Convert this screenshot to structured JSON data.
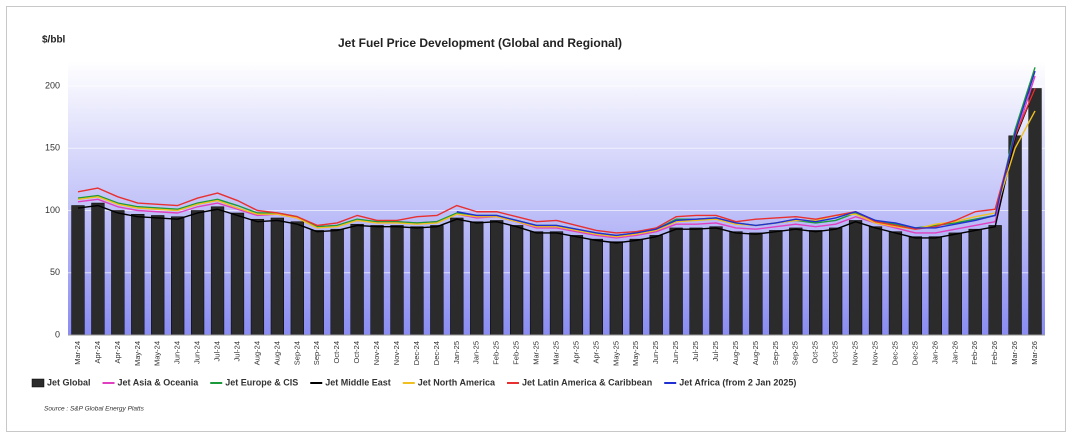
{
  "chart_data": {
    "type": "bar",
    "title": "Jet Fuel Price Development (Global and Regional)",
    "y_label": "$/bbl",
    "source": "Source : S&P Global Energy Platts",
    "categories": [
      "Mar-24",
      "Apr-24",
      "Apr-24",
      "May-24",
      "May-24",
      "Jun-24",
      "Jun-24",
      "Jul-24",
      "Jul-24",
      "Aug-24",
      "Aug-24",
      "Sep-24",
      "Sep-24",
      "Oct-24",
      "Oct-24",
      "Nov-24",
      "Nov-24",
      "Dec-24",
      "Dec-24",
      "Jan-25",
      "Jan-25",
      "Feb-25",
      "Feb-25",
      "Mar-25",
      "Mar-25",
      "Apr-25",
      "Apr-25",
      "May-25",
      "May-25",
      "Jun-25",
      "Jun-25",
      "Jul-25",
      "Jul-25",
      "Aug-25",
      "Aug-25",
      "Sep-25",
      "Sep-25",
      "Oct-25",
      "Oct-25",
      "Nov-25",
      "Nov-25",
      "Dec-25",
      "Dec-25",
      "Jan-26",
      "Jan-26",
      "Feb-26",
      "Feb-26",
      "Mar-26",
      "Mar-26"
    ],
    "series": [
      {
        "name": "Jet Global",
        "mark": "bar",
        "color": "#2b2b2b",
        "values": [
          104,
          106,
          100,
          97,
          96,
          95,
          100,
          103,
          98,
          93,
          94,
          91,
          84,
          85,
          89,
          88,
          88,
          87,
          88,
          94,
          91,
          92,
          88,
          83,
          83,
          80,
          77,
          75,
          77,
          80,
          86,
          86,
          87,
          83,
          82,
          84,
          86,
          84,
          86,
          92,
          87,
          83,
          79,
          79,
          82,
          85,
          88,
          160,
          198
        ]
      },
      {
        "name": "Jet Asia & Oceania",
        "mark": "line",
        "color": "#e040c0",
        "values": [
          107,
          109,
          103,
          100,
          99,
          98,
          103,
          106,
          101,
          96,
          97,
          94,
          87,
          88,
          92,
          91,
          91,
          90,
          91,
          97,
          94,
          95,
          91,
          86,
          86,
          83,
          80,
          78,
          80,
          83,
          89,
          89,
          90,
          86,
          85,
          87,
          89,
          87,
          89,
          95,
          90,
          86,
          82,
          82,
          85,
          88,
          91,
          158,
          208
        ]
      },
      {
        "name": "Jet Europe & CIS",
        "mark": "line",
        "color": "#1a9a3a",
        "values": [
          110,
          112,
          106,
          103,
          102,
          101,
          106,
          109,
          104,
          98,
          98,
          95,
          87,
          88,
          93,
          91,
          91,
          90,
          91,
          98,
          96,
          96,
          92,
          88,
          88,
          85,
          82,
          80,
          82,
          85,
          93,
          93,
          94,
          90,
          88,
          90,
          92,
          90,
          92,
          98,
          92,
          89,
          86,
          88,
          90,
          93,
          96,
          165,
          215
        ]
      },
      {
        "name": "Jet Middle East",
        "mark": "line",
        "color": "#000000",
        "values": [
          102,
          104,
          98,
          95,
          94,
          93,
          98,
          101,
          96,
          91,
          92,
          89,
          83,
          84,
          88,
          87,
          87,
          86,
          87,
          93,
          90,
          91,
          87,
          82,
          82,
          79,
          76,
          74,
          76,
          79,
          85,
          85,
          86,
          82,
          81,
          83,
          85,
          83,
          85,
          91,
          86,
          82,
          78,
          78,
          81,
          84,
          87,
          158,
          198
        ]
      },
      {
        "name": "Jet North America",
        "mark": "line",
        "color": "#f0c020",
        "values": [
          109,
          111,
          105,
          102,
          101,
          100,
          105,
          108,
          102,
          97,
          97,
          94,
          86,
          87,
          92,
          90,
          90,
          89,
          90,
          97,
          95,
          95,
          91,
          87,
          87,
          84,
          81,
          79,
          81,
          84,
          91,
          92,
          93,
          89,
          88,
          90,
          92,
          92,
          96,
          97,
          90,
          87,
          85,
          89,
          91,
          95,
          98,
          150,
          180
        ]
      },
      {
        "name": "Jet Latin America & Caribbean",
        "mark": "line",
        "color": "#e83030",
        "values": [
          115,
          118,
          111,
          106,
          105,
          104,
          110,
          114,
          108,
          100,
          98,
          95,
          88,
          90,
          96,
          92,
          92,
          95,
          96,
          104,
          99,
          99,
          95,
          91,
          92,
          88,
          84,
          82,
          83,
          86,
          95,
          96,
          96,
          91,
          93,
          94,
          95,
          93,
          96,
          99,
          91,
          88,
          85,
          87,
          92,
          99,
          101,
          160,
          198
        ]
      },
      {
        "name": "Jet Africa (from 2 Jan 2025)",
        "mark": "line",
        "color": "#2030d0",
        "values": [
          null,
          null,
          null,
          null,
          null,
          null,
          null,
          null,
          null,
          null,
          null,
          null,
          null,
          null,
          null,
          null,
          null,
          null,
          null,
          99,
          96,
          96,
          92,
          88,
          88,
          85,
          82,
          80,
          82,
          85,
          92,
          93,
          94,
          90,
          88,
          90,
          93,
          91,
          94,
          99,
          92,
          90,
          86,
          86,
          89,
          92,
          96,
          162,
          212
        ]
      }
    ],
    "ylim": [
      0,
      220
    ],
    "yticks": [
      0,
      50,
      100,
      150,
      200
    ],
    "grid": true
  }
}
